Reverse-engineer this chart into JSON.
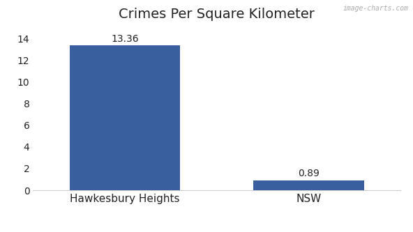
{
  "categories": [
    "Hawkesbury Heights",
    "NSW"
  ],
  "values": [
    13.36,
    0.89
  ],
  "bar_colors": [
    "#3a5f9f",
    "#3a5f9f"
  ],
  "title": "Crimes Per Square Kilometer",
  "ylim": [
    0,
    15
  ],
  "yticks": [
    0,
    2,
    4,
    6,
    8,
    10,
    12,
    14
  ],
  "bar_width": 0.6,
  "title_fontsize": 14,
  "label_fontsize": 11,
  "value_fontsize": 10,
  "background_color": "#ffffff",
  "watermark": "image-charts.com"
}
